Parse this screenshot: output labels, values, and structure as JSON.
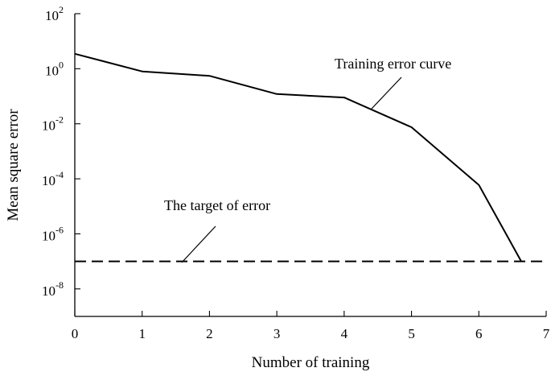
{
  "chart_data": {
    "type": "line",
    "xlabel": "Number of training",
    "ylabel": "Mean square error",
    "yscale": "log",
    "xlim": [
      0,
      7
    ],
    "ylim": [
      1e-09,
      100
    ],
    "x_ticks": [
      "0",
      "1",
      "2",
      "3",
      "4",
      "5",
      "6",
      "7"
    ],
    "y_ticks": [
      {
        "base": "10",
        "exp": "2",
        "value": 100
      },
      {
        "base": "10",
        "exp": "0",
        "value": 1
      },
      {
        "base": "10",
        "exp": "-2",
        "value": 0.01
      },
      {
        "base": "10",
        "exp": "-4",
        "value": 0.0001
      },
      {
        "base": "10",
        "exp": "-6",
        "value": 1e-06
      },
      {
        "base": "10",
        "exp": "-8",
        "value": 1e-08
      }
    ],
    "series": [
      {
        "label": "Training error curve",
        "style": "solid",
        "x": [
          0,
          1,
          2,
          3,
          4,
          5,
          6,
          6.63
        ],
        "y": [
          3.5,
          0.8,
          0.55,
          0.12,
          0.09,
          0.0075,
          6e-05,
          1e-07
        ]
      },
      {
        "label": "The target of error",
        "style": "dashed",
        "x": [
          0,
          6.63,
          7
        ],
        "y": [
          1e-07,
          1e-07,
          1e-07
        ]
      }
    ],
    "grid": false,
    "legend": "annotations"
  }
}
